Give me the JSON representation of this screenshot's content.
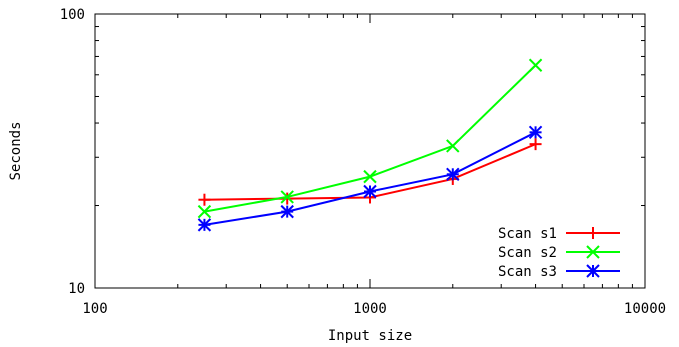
{
  "chart_data": {
    "type": "line",
    "title": "",
    "xlabel": "Input size",
    "ylabel": "Seconds",
    "x_scale": "log",
    "y_scale": "log",
    "xlim": [
      100,
      10000
    ],
    "ylim": [
      10,
      100
    ],
    "x_ticks": [
      100,
      1000,
      10000
    ],
    "x_tick_labels": [
      "100",
      "1000",
      "10000"
    ],
    "y_ticks": [
      10,
      100
    ],
    "y_tick_labels": [
      "10",
      "100"
    ],
    "grid": false,
    "legend_position": "bottom-right",
    "series": [
      {
        "name": "Scan s1",
        "color": "#ff0000",
        "marker": "plus",
        "x": [
          250,
          500,
          1000,
          2000,
          4000
        ],
        "y": [
          21,
          21.2,
          21.4,
          25,
          33.5
        ]
      },
      {
        "name": "Scan s2",
        "color": "#00ff00",
        "marker": "cross",
        "x": [
          250,
          500,
          1000,
          2000,
          4000
        ],
        "y": [
          19,
          21.5,
          25.5,
          33,
          65
        ]
      },
      {
        "name": "Scan s3",
        "color": "#0000ff",
        "marker": "star",
        "x": [
          250,
          500,
          1000,
          2000,
          4000
        ],
        "y": [
          17,
          19,
          22.5,
          26,
          37
        ]
      }
    ]
  }
}
